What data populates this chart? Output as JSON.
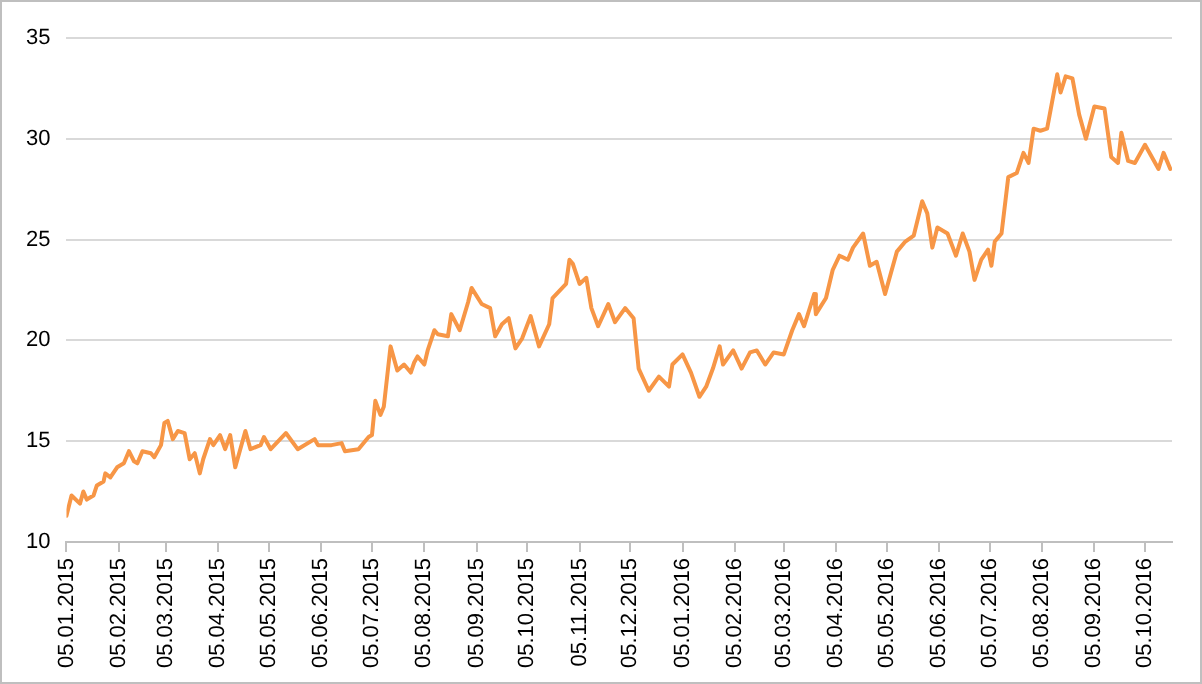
{
  "chart_data": {
    "type": "line",
    "grid": "y",
    "legend": false,
    "marker": "none",
    "line_style": "solid",
    "xlim": [
      "2015-01-05",
      "2016-10-21"
    ],
    "ylim": [
      10,
      35
    ],
    "yticks": [
      10,
      15,
      20,
      25,
      30,
      35
    ],
    "xticks": [
      {
        "value": "2015-01-05",
        "label": "05.01.2015"
      },
      {
        "value": "2015-02-05",
        "label": "05.02.2015"
      },
      {
        "value": "2015-03-05",
        "label": "05.03.2015"
      },
      {
        "value": "2015-04-05",
        "label": "05.04.2015"
      },
      {
        "value": "2015-05-05",
        "label": "05.05.2015"
      },
      {
        "value": "2015-06-05",
        "label": "05.06.2015"
      },
      {
        "value": "2015-07-05",
        "label": "05.07.2015"
      },
      {
        "value": "2015-08-05",
        "label": "05.08.2015"
      },
      {
        "value": "2015-09-05",
        "label": "05.09.2015"
      },
      {
        "value": "2015-10-05",
        "label": "05.10.2015"
      },
      {
        "value": "2015-11-05",
        "label": "05.11.2015"
      },
      {
        "value": "2015-12-05",
        "label": "05.12.2015"
      },
      {
        "value": "2016-01-05",
        "label": "05.01.2016"
      },
      {
        "value": "2016-02-05",
        "label": "05.02.2016"
      },
      {
        "value": "2016-03-05",
        "label": "05.03.2016"
      },
      {
        "value": "2016-04-05",
        "label": "05.04.2016"
      },
      {
        "value": "2016-05-05",
        "label": "05.05.2016"
      },
      {
        "value": "2016-06-05",
        "label": "05.06.2016"
      },
      {
        "value": "2016-07-05",
        "label": "05.07.2016"
      },
      {
        "value": "2016-08-05",
        "label": "05.08.2016"
      },
      {
        "value": "2016-09-05",
        "label": "05.09.2016"
      },
      {
        "value": "2016-10-05",
        "label": "05.10.2016"
      }
    ],
    "series": [
      {
        "color": "#f79646",
        "x": [
          "2015-01-05",
          "2015-01-08",
          "2015-01-13",
          "2015-01-15",
          "2015-01-17",
          "2015-01-21",
          "2015-01-23",
          "2015-01-27",
          "2015-01-28",
          "2015-01-31",
          "2015-02-04",
          "2015-02-08",
          "2015-02-11",
          "2015-02-14",
          "2015-02-16",
          "2015-02-19",
          "2015-02-24",
          "2015-02-26",
          "2015-03-02",
          "2015-03-04",
          "2015-03-06",
          "2015-03-09",
          "2015-03-12",
          "2015-03-16",
          "2015-03-19",
          "2015-03-22",
          "2015-03-25",
          "2015-03-27",
          "2015-03-31",
          "2015-04-02",
          "2015-04-06",
          "2015-04-09",
          "2015-04-12",
          "2015-04-15",
          "2015-04-21",
          "2015-04-24",
          "2015-04-30",
          "2015-05-02",
          "2015-05-06",
          "2015-05-15",
          "2015-05-22",
          "2015-06-01",
          "2015-06-03",
          "2015-06-11",
          "2015-06-17",
          "2015-06-19",
          "2015-06-27",
          "2015-07-03",
          "2015-07-05",
          "2015-07-07",
          "2015-07-10",
          "2015-07-12",
          "2015-07-16",
          "2015-07-20",
          "2015-07-24",
          "2015-07-28",
          "2015-07-30",
          "2015-08-01",
          "2015-08-05",
          "2015-08-07",
          "2015-08-11",
          "2015-08-13",
          "2015-08-19",
          "2015-08-21",
          "2015-08-26",
          "2015-08-31",
          "2015-09-02",
          "2015-09-08",
          "2015-09-13",
          "2015-09-16",
          "2015-09-20",
          "2015-09-24",
          "2015-09-28",
          "2015-10-02",
          "2015-10-07",
          "2015-10-12",
          "2015-10-18",
          "2015-10-20",
          "2015-10-28",
          "2015-10-30",
          "2015-11-01",
          "2015-11-05",
          "2015-11-09",
          "2015-11-12",
          "2015-11-16",
          "2015-11-22",
          "2015-11-26",
          "2015-12-02",
          "2015-12-07",
          "2015-12-10",
          "2015-12-16",
          "2015-12-22",
          "2015-12-28",
          "2015-12-30",
          "2016-01-05",
          "2016-01-10",
          "2016-01-15",
          "2016-01-19",
          "2016-01-23",
          "2016-01-27",
          "2016-01-29",
          "2016-02-04",
          "2016-02-09",
          "2016-02-14",
          "2016-02-18",
          "2016-02-23",
          "2016-02-28",
          "2016-03-05",
          "2016-03-10",
          "2016-03-14",
          "2016-03-17",
          "2016-03-23",
          "2016-03-24",
          "2016-03-30",
          "2016-04-03",
          "2016-04-07",
          "2016-04-12",
          "2016-04-15",
          "2016-04-21",
          "2016-04-25",
          "2016-04-29",
          "2016-05-04",
          "2016-05-11",
          "2016-05-16",
          "2016-05-21",
          "2016-05-26",
          "2016-05-29",
          "2016-06-01",
          "2016-06-04",
          "2016-06-10",
          "2016-06-15",
          "2016-06-19",
          "2016-06-23",
          "2016-06-26",
          "2016-06-30",
          "2016-07-04",
          "2016-07-06",
          "2016-07-08",
          "2016-07-12",
          "2016-07-16",
          "2016-07-21",
          "2016-07-25",
          "2016-07-28",
          "2016-07-31",
          "2016-08-04",
          "2016-08-08",
          "2016-08-14",
          "2016-08-16",
          "2016-08-19",
          "2016-08-23",
          "2016-08-27",
          "2016-08-31",
          "2016-09-05",
          "2016-09-11",
          "2016-09-15",
          "2016-09-19",
          "2016-09-21",
          "2016-09-25",
          "2016-09-29",
          "2016-10-05",
          "2016-10-13",
          "2016-10-16",
          "2016-10-20"
        ],
        "values": [
          11.3,
          12.3,
          11.9,
          12.5,
          12.1,
          12.3,
          12.8,
          13.0,
          13.4,
          13.2,
          13.7,
          13.9,
          14.5,
          14.0,
          13.9,
          14.5,
          14.4,
          14.2,
          14.8,
          15.9,
          16.0,
          15.1,
          15.5,
          15.4,
          14.1,
          14.4,
          13.4,
          14.1,
          15.1,
          14.8,
          15.3,
          14.6,
          15.3,
          13.7,
          15.5,
          14.6,
          14.8,
          15.2,
          14.6,
          15.4,
          14.6,
          15.1,
          14.8,
          14.8,
          14.9,
          14.5,
          14.6,
          15.2,
          15.3,
          17.0,
          16.3,
          16.7,
          19.7,
          18.5,
          18.8,
          18.4,
          18.9,
          19.2,
          18.8,
          19.5,
          20.5,
          20.3,
          20.2,
          21.3,
          20.5,
          21.9,
          22.6,
          21.8,
          21.6,
          20.2,
          20.8,
          21.1,
          19.6,
          20.1,
          21.2,
          19.7,
          20.8,
          22.1,
          22.8,
          24.0,
          23.8,
          22.8,
          23.1,
          21.6,
          20.7,
          21.8,
          20.9,
          21.6,
          21.1,
          18.6,
          17.5,
          18.2,
          17.7,
          18.8,
          19.3,
          18.4,
          17.2,
          17.7,
          18.6,
          19.7,
          18.8,
          19.5,
          18.6,
          19.4,
          19.5,
          18.8,
          19.4,
          19.3,
          20.5,
          21.3,
          20.7,
          22.3,
          21.3,
          22.1,
          23.5,
          24.2,
          24.0,
          24.6,
          25.3,
          23.7,
          23.9,
          22.3,
          24.4,
          24.9,
          25.2,
          26.9,
          26.3,
          24.6,
          25.6,
          25.3,
          24.2,
          25.3,
          24.4,
          23.0,
          24.0,
          24.5,
          23.7,
          24.9,
          25.3,
          28.1,
          28.3,
          29.3,
          28.8,
          30.5,
          30.4,
          30.5,
          33.2,
          32.3,
          33.1,
          33.0,
          31.2,
          30.0,
          31.6,
          31.5,
          29.1,
          28.8,
          30.3,
          28.9,
          28.8,
          29.7,
          28.5,
          29.3,
          28.5
        ]
      }
    ]
  }
}
